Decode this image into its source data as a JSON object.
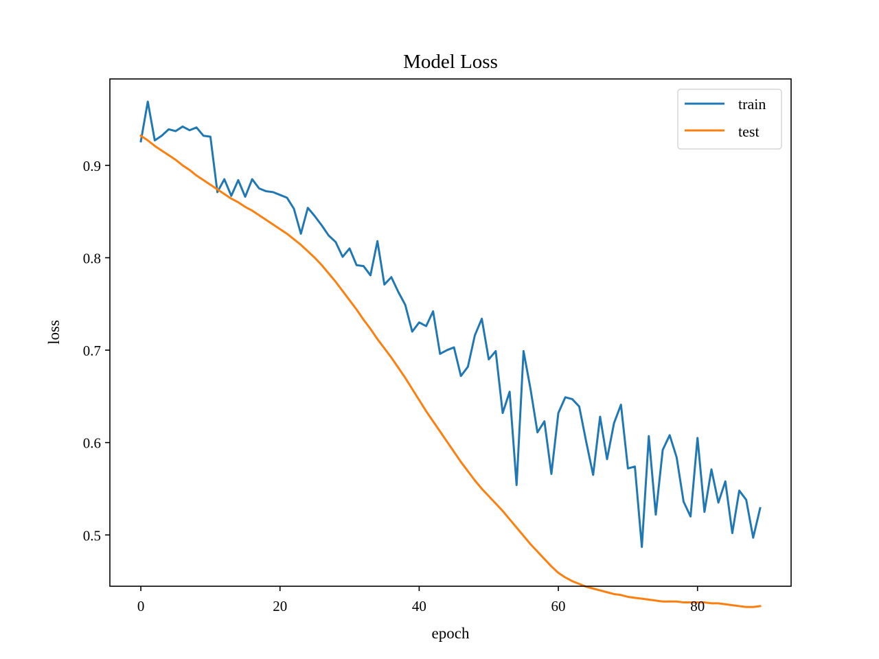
{
  "chart_data": {
    "type": "line",
    "title": "Model Loss",
    "xlabel": "epoch",
    "ylabel": "loss",
    "xlim": [
      -4.45,
      93.45
    ],
    "ylim": [
      0.4445,
      0.9935
    ],
    "xticks": [
      0,
      20,
      40,
      60,
      80
    ],
    "xtick_labels": [
      "0",
      "20",
      "40",
      "60",
      "80"
    ],
    "yticks": [
      0.5,
      0.6,
      0.7,
      0.8,
      0.9
    ],
    "ytick_labels": [
      "0.5",
      "0.6",
      "0.7",
      "0.8",
      "0.9"
    ],
    "grid": false,
    "legend_position": "top-right",
    "x": [
      0,
      1,
      2,
      3,
      4,
      5,
      6,
      7,
      8,
      9,
      10,
      11,
      12,
      13,
      14,
      15,
      16,
      17,
      18,
      19,
      20,
      21,
      22,
      23,
      24,
      25,
      26,
      27,
      28,
      29,
      30,
      31,
      32,
      33,
      34,
      35,
      36,
      37,
      38,
      39,
      40,
      41,
      42,
      43,
      44,
      45,
      46,
      47,
      48,
      49,
      50,
      51,
      52,
      53,
      54,
      55,
      56,
      57,
      58,
      59,
      60,
      61,
      62,
      63,
      64,
      65,
      66,
      67,
      68,
      69,
      70,
      71,
      72,
      73,
      74,
      75,
      76,
      77,
      78,
      79,
      80,
      81,
      82,
      83,
      84,
      85,
      86,
      87,
      88,
      89
    ],
    "series": [
      {
        "name": "train",
        "color": "#1f77b4",
        "values": [
          0.926,
          0.969,
          0.927,
          0.932,
          0.939,
          0.937,
          0.942,
          0.938,
          0.941,
          0.932,
          0.931,
          0.871,
          0.885,
          0.867,
          0.884,
          0.866,
          0.885,
          0.875,
          0.872,
          0.871,
          0.868,
          0.865,
          0.853,
          0.826,
          0.854,
          0.845,
          0.835,
          0.824,
          0.817,
          0.801,
          0.81,
          0.792,
          0.791,
          0.781,
          0.818,
          0.771,
          0.779,
          0.763,
          0.749,
          0.72,
          0.73,
          0.726,
          0.742,
          0.696,
          0.7,
          0.703,
          0.672,
          0.682,
          0.716,
          0.734,
          0.69,
          0.699,
          0.632,
          0.655,
          0.554,
          0.699,
          0.658,
          0.611,
          0.623,
          0.566,
          0.632,
          0.649,
          0.647,
          0.639,
          0.601,
          0.565,
          0.628,
          0.582,
          0.621,
          0.641,
          0.572,
          0.574,
          0.487,
          0.607,
          0.522,
          0.592,
          0.608,
          0.584,
          0.536,
          0.52,
          0.605,
          0.525,
          0.571,
          0.535,
          0.558,
          0.502,
          0.548,
          0.538,
          0.497,
          0.529
        ]
      },
      {
        "name": "test",
        "color": "#ff7f0e",
        "values": [
          0.932,
          0.927,
          0.921,
          0.916,
          0.911,
          0.906,
          0.9,
          0.895,
          0.889,
          0.884,
          0.879,
          0.874,
          0.869,
          0.864,
          0.86,
          0.855,
          0.851,
          0.846,
          0.841,
          0.836,
          0.831,
          0.826,
          0.82,
          0.814,
          0.807,
          0.8,
          0.792,
          0.783,
          0.774,
          0.764,
          0.754,
          0.744,
          0.733,
          0.723,
          0.712,
          0.702,
          0.692,
          0.681,
          0.67,
          0.658,
          0.646,
          0.634,
          0.623,
          0.612,
          0.601,
          0.59,
          0.579,
          0.569,
          0.559,
          0.55,
          0.542,
          0.534,
          0.526,
          0.517,
          0.508,
          0.499,
          0.49,
          0.482,
          0.474,
          0.466,
          0.459,
          0.454,
          0.45,
          0.447,
          0.444,
          0.442,
          0.44,
          0.438,
          0.436,
          0.435,
          0.433,
          0.432,
          0.431,
          0.43,
          0.429,
          0.428,
          0.428,
          0.428,
          0.427,
          0.427,
          0.427,
          0.427,
          0.426,
          0.426,
          0.425,
          0.424,
          0.423,
          0.422,
          0.422,
          0.423
        ]
      }
    ]
  }
}
